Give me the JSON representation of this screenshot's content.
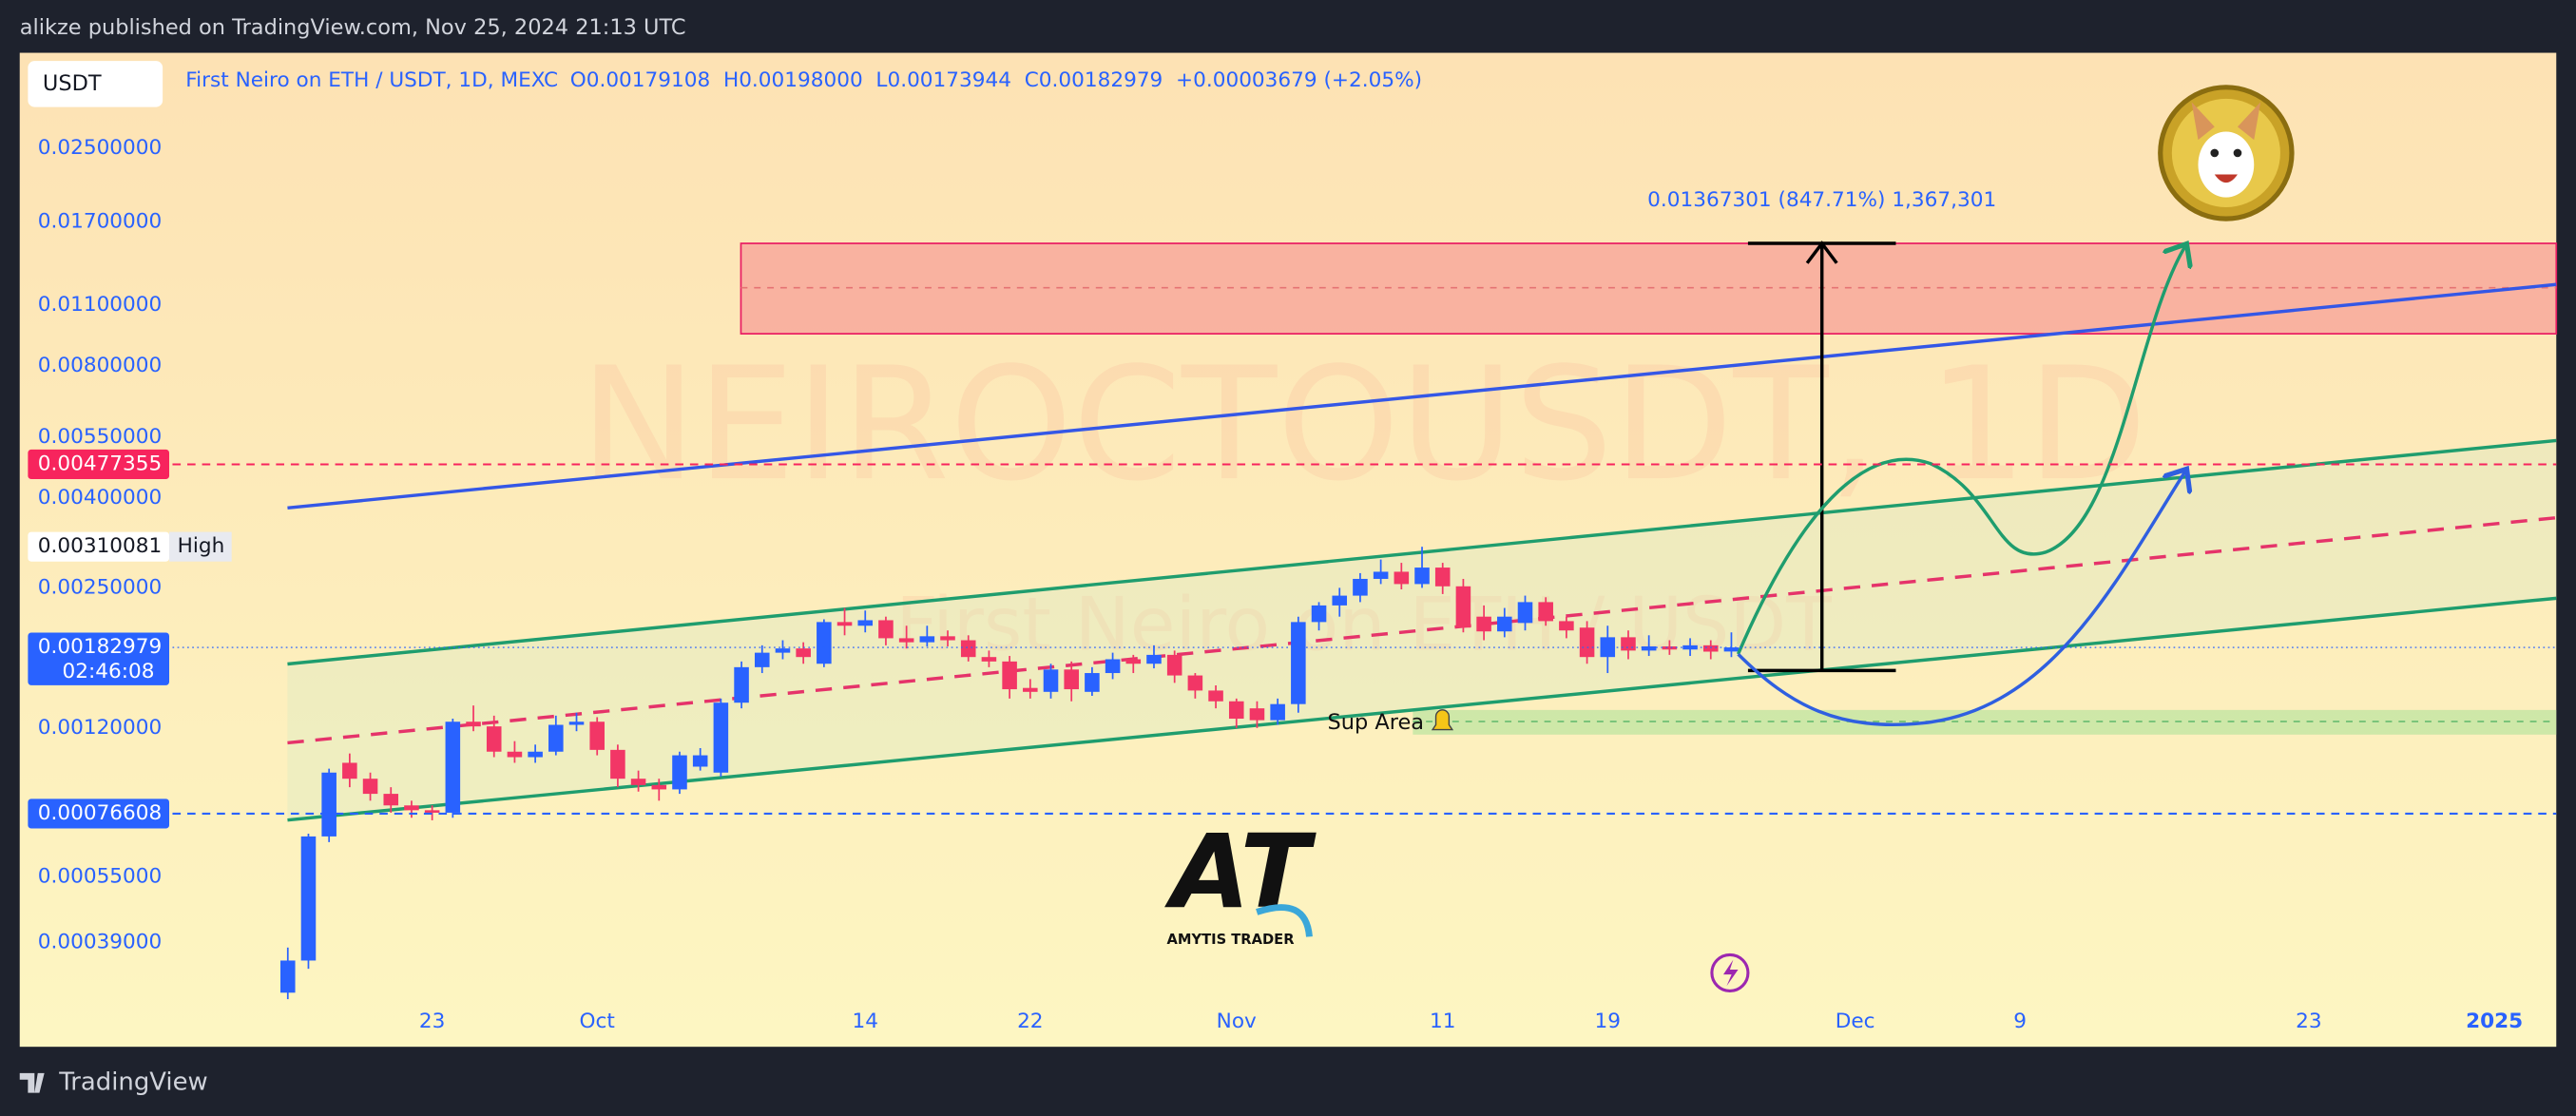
{
  "header": {
    "publisher": "alikze published on TradingView.com, Nov 25, 2024 21:13 UTC",
    "footer": "TradingView"
  },
  "toolbar": {
    "currency": "USDT"
  },
  "watermark": {
    "symbol": "NEIROCTOUSDT, 1D",
    "description": "First Neiro on ETH / USDT"
  },
  "annotations": {
    "measure": "0.01367301 (847.71%) 1,367,301",
    "support": "Sup Area",
    "logo_mark": "AT",
    "logo_text": "AMYTIS TRADER"
  },
  "chart_data": {
    "type": "candlestick",
    "title": "First Neiro on ETH / USDT, 1D, MEXC",
    "ohlc_legend": "O0.00179108  H0.00198000  L0.00173944  C0.00182979  +0.00003679 (+2.05%)",
    "up_color": "#2962ff",
    "down_color": "#f23666",
    "log_scale": true,
    "ylim": [
      0.000226,
      0.0412
    ],
    "yticks": [
      {
        "value": 0.025,
        "label": "0.02500000"
      },
      {
        "value": 0.017,
        "label": "0.01700000"
      },
      {
        "value": 0.011,
        "label": "0.01100000"
      },
      {
        "value": 0.008,
        "label": "0.00800000"
      },
      {
        "value": 0.0055,
        "label": "0.00550000"
      },
      {
        "value": 0.004,
        "label": "0.00400000"
      },
      {
        "value": 0.0025,
        "label": "0.00250000"
      },
      {
        "value": 0.0012,
        "label": "0.00120000"
      },
      {
        "value": 0.00055,
        "label": "0.00055000"
      },
      {
        "value": 0.00039,
        "label": "0.00039000"
      }
    ],
    "xlim": [
      -13,
      110
    ],
    "xticks": [
      {
        "value": 7,
        "label": "23"
      },
      {
        "value": 15,
        "label": "Oct"
      },
      {
        "value": 28,
        "label": "14"
      },
      {
        "value": 36,
        "label": "22"
      },
      {
        "value": 46,
        "label": "Nov"
      },
      {
        "value": 56,
        "label": "11"
      },
      {
        "value": 64,
        "label": "19"
      },
      {
        "value": 76,
        "label": "Dec"
      },
      {
        "value": 84,
        "label": "9"
      },
      {
        "value": 98,
        "label": "23"
      },
      {
        "value": 107,
        "label": "2025"
      }
    ],
    "markers": [
      {
        "value": 0.00477355,
        "color": "#f7245d",
        "line": "dashed"
      },
      {
        "value": 0.00310081,
        "color": "#ffffff",
        "note": "High"
      },
      {
        "value": 0.00182979,
        "color": "#2962ff",
        "countdown": "02:46:08",
        "line": "dotted"
      },
      {
        "value": 0.00076608,
        "color": "#2962ff",
        "line": "dashed"
      }
    ],
    "ohlc": [
      [
        0.0003,
        0.00038,
        0.00029,
        0.000355
      ],
      [
        0.000355,
        0.00069,
        0.00034,
        0.00068
      ],
      [
        0.00068,
        0.00097,
        0.00066,
        0.00095
      ],
      [
        0.001,
        0.00105,
        0.00088,
        0.00092
      ],
      [
        0.00092,
        0.00095,
        0.00082,
        0.00085
      ],
      [
        0.00085,
        0.00088,
        0.00077,
        0.0008
      ],
      [
        0.0008,
        0.00082,
        0.00075,
        0.00078
      ],
      [
        0.00078,
        0.0008,
        0.00074,
        0.00077
      ],
      [
        0.00077,
        0.00126,
        0.00075,
        0.00124
      ],
      [
        0.00124,
        0.00135,
        0.00118,
        0.00121
      ],
      [
        0.00121,
        0.00128,
        0.00103,
        0.00106
      ],
      [
        0.00106,
        0.00112,
        0.001,
        0.00103
      ],
      [
        0.00103,
        0.0011,
        0.001,
        0.00106
      ],
      [
        0.00106,
        0.00128,
        0.00104,
        0.00122
      ],
      [
        0.00122,
        0.0013,
        0.00118,
        0.00124
      ],
      [
        0.00124,
        0.00127,
        0.00104,
        0.00107
      ],
      [
        0.00107,
        0.0011,
        0.00088,
        0.00092
      ],
      [
        0.00092,
        0.00096,
        0.00086,
        0.00089
      ],
      [
        0.00089,
        0.00092,
        0.00082,
        0.00087
      ],
      [
        0.00087,
        0.00106,
        0.00085,
        0.00104
      ],
      [
        0.00098,
        0.00108,
        0.00096,
        0.00104
      ],
      [
        0.00095,
        0.0014,
        0.00093,
        0.00137
      ],
      [
        0.00137,
        0.0017,
        0.00133,
        0.00165
      ],
      [
        0.00165,
        0.00185,
        0.0016,
        0.00178
      ],
      [
        0.00178,
        0.0019,
        0.00172,
        0.00182
      ],
      [
        0.00182,
        0.00188,
        0.00168,
        0.00174
      ],
      [
        0.00168,
        0.00212,
        0.00165,
        0.00209
      ],
      [
        0.00209,
        0.00225,
        0.00195,
        0.00205
      ],
      [
        0.00205,
        0.00222,
        0.00198,
        0.00211
      ],
      [
        0.00211,
        0.00215,
        0.00185,
        0.00192
      ],
      [
        0.00192,
        0.00205,
        0.00182,
        0.00188
      ],
      [
        0.00188,
        0.00205,
        0.00184,
        0.00194
      ],
      [
        0.00194,
        0.002,
        0.00184,
        0.0019
      ],
      [
        0.0019,
        0.00195,
        0.0017,
        0.00174
      ],
      [
        0.00174,
        0.0018,
        0.00165,
        0.0017
      ],
      [
        0.0017,
        0.00175,
        0.0014,
        0.00147
      ],
      [
        0.00148,
        0.00155,
        0.0014,
        0.00145
      ],
      [
        0.00145,
        0.00168,
        0.0014,
        0.00163
      ],
      [
        0.00163,
        0.0017,
        0.00138,
        0.00147
      ],
      [
        0.00145,
        0.00165,
        0.00142,
        0.0016
      ],
      [
        0.0016,
        0.00178,
        0.00155,
        0.00172
      ],
      [
        0.00172,
        0.00176,
        0.0016,
        0.00168
      ],
      [
        0.00168,
        0.00185,
        0.00164,
        0.00176
      ],
      [
        0.00176,
        0.0018,
        0.00152,
        0.00158
      ],
      [
        0.00158,
        0.0016,
        0.0014,
        0.00146
      ],
      [
        0.00146,
        0.0015,
        0.00133,
        0.00138
      ],
      [
        0.00138,
        0.0014,
        0.0012,
        0.00126
      ],
      [
        0.00133,
        0.00138,
        0.0012,
        0.00125
      ],
      [
        0.00125,
        0.0014,
        0.00122,
        0.00136
      ],
      [
        0.00136,
        0.00215,
        0.0013,
        0.00209
      ],
      [
        0.00209,
        0.00232,
        0.002,
        0.00228
      ],
      [
        0.00228,
        0.0025,
        0.00215,
        0.0024
      ],
      [
        0.0024,
        0.0027,
        0.00232,
        0.00262
      ],
      [
        0.00262,
        0.0029,
        0.00255,
        0.00272
      ],
      [
        0.00272,
        0.00285,
        0.00248,
        0.00255
      ],
      [
        0.00255,
        0.0031,
        0.0025,
        0.00278
      ],
      [
        0.00278,
        0.00285,
        0.00242,
        0.00252
      ],
      [
        0.00252,
        0.00262,
        0.00198,
        0.00203
      ],
      [
        0.00215,
        0.00228,
        0.0019,
        0.00199
      ],
      [
        0.00199,
        0.00225,
        0.00193,
        0.00215
      ],
      [
        0.00208,
        0.0024,
        0.002,
        0.00232
      ],
      [
        0.00232,
        0.00238,
        0.00205,
        0.0021
      ],
      [
        0.0021,
        0.00215,
        0.00192,
        0.002
      ],
      [
        0.00203,
        0.0021,
        0.00168,
        0.00174
      ],
      [
        0.00174,
        0.00205,
        0.0016,
        0.00193
      ],
      [
        0.00193,
        0.002,
        0.00172,
        0.0018
      ],
      [
        0.0018,
        0.00195,
        0.00175,
        0.00184
      ],
      [
        0.00184,
        0.0019,
        0.00176,
        0.00181
      ],
      [
        0.00181,
        0.00192,
        0.00175,
        0.00185
      ],
      [
        0.00185,
        0.0019,
        0.00172,
        0.00179
      ],
      [
        0.00179108,
        0.00198,
        0.00173944,
        0.00182979
      ]
    ]
  }
}
